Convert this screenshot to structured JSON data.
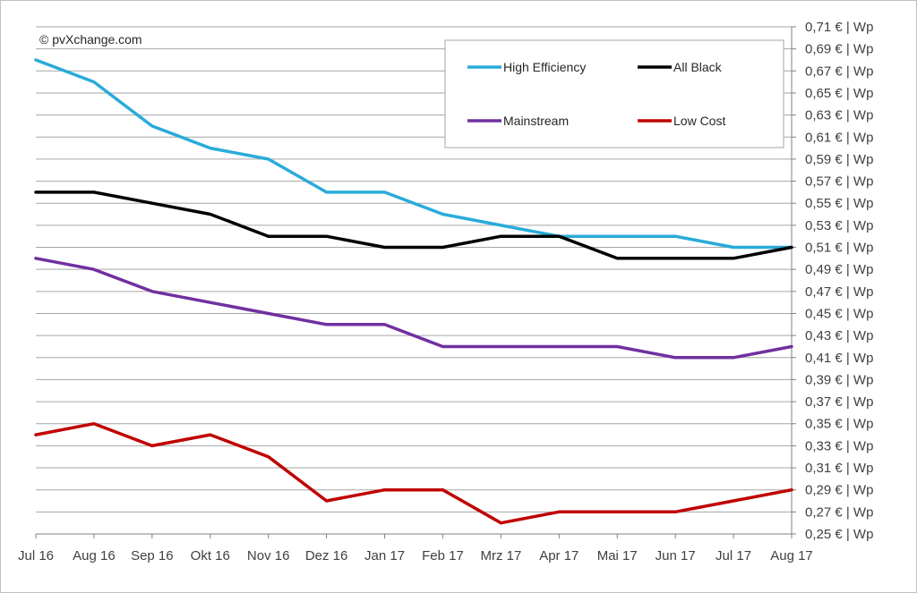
{
  "chart_data": {
    "type": "line",
    "copyright": "© pvXchange.com",
    "categories": [
      "Jul 16",
      "Aug 16",
      "Sep 16",
      "Okt 16",
      "Nov 16",
      "Dez 16",
      "Jan 17",
      "Feb 17",
      "Mrz 17",
      "Apr 17",
      "Mai 17",
      "Jun 17",
      "Jul 17",
      "Aug 17"
    ],
    "ylim": [
      0.25,
      0.71
    ],
    "ytick_step": 0.02,
    "ytick_labels": [
      "0,71 € | Wp",
      "0,69 € | Wp",
      "0,67 € | Wp",
      "0,65 € | Wp",
      "0,63 € | Wp",
      "0,61 € | Wp",
      "0,59 € | Wp",
      "0,57 € | Wp",
      "0,55 € | Wp",
      "0,53 € | Wp",
      "0,51 € | Wp",
      "0,49 € | Wp",
      "0,47 € | Wp",
      "0,45 € | Wp",
      "0,43 € | Wp",
      "0,41 € | Wp",
      "0,39 € | Wp",
      "0,37 € | Wp",
      "0,35 € | Wp",
      "0,33 € | Wp",
      "0,31 € | Wp",
      "0,29 € | Wp",
      "0,27 € | Wp",
      "0,25 € | Wp"
    ],
    "grid": true,
    "legend_position": "top-right",
    "series": [
      {
        "name": "High Efficiency",
        "color": "#29abd9",
        "values": [
          0.68,
          0.66,
          0.62,
          0.6,
          0.59,
          0.56,
          0.56,
          0.54,
          0.53,
          0.52,
          0.52,
          0.52,
          0.51,
          0.51
        ]
      },
      {
        "name": "All Black",
        "color": "#000000",
        "values": [
          0.56,
          0.56,
          0.55,
          0.54,
          0.52,
          0.52,
          0.51,
          0.51,
          0.52,
          0.52,
          0.5,
          0.5,
          0.5,
          0.51
        ]
      },
      {
        "name": "Mainstream",
        "color": "#7030a0",
        "values": [
          0.5,
          0.49,
          0.47,
          0.46,
          0.45,
          0.44,
          0.44,
          0.42,
          0.42,
          0.42,
          0.42,
          0.41,
          0.41,
          0.42
        ]
      },
      {
        "name": "Low Cost",
        "color": "#c00000",
        "values": [
          0.34,
          0.35,
          0.33,
          0.34,
          0.32,
          0.28,
          0.29,
          0.29,
          0.26,
          0.27,
          0.27,
          0.27,
          0.28,
          0.29
        ]
      }
    ]
  }
}
